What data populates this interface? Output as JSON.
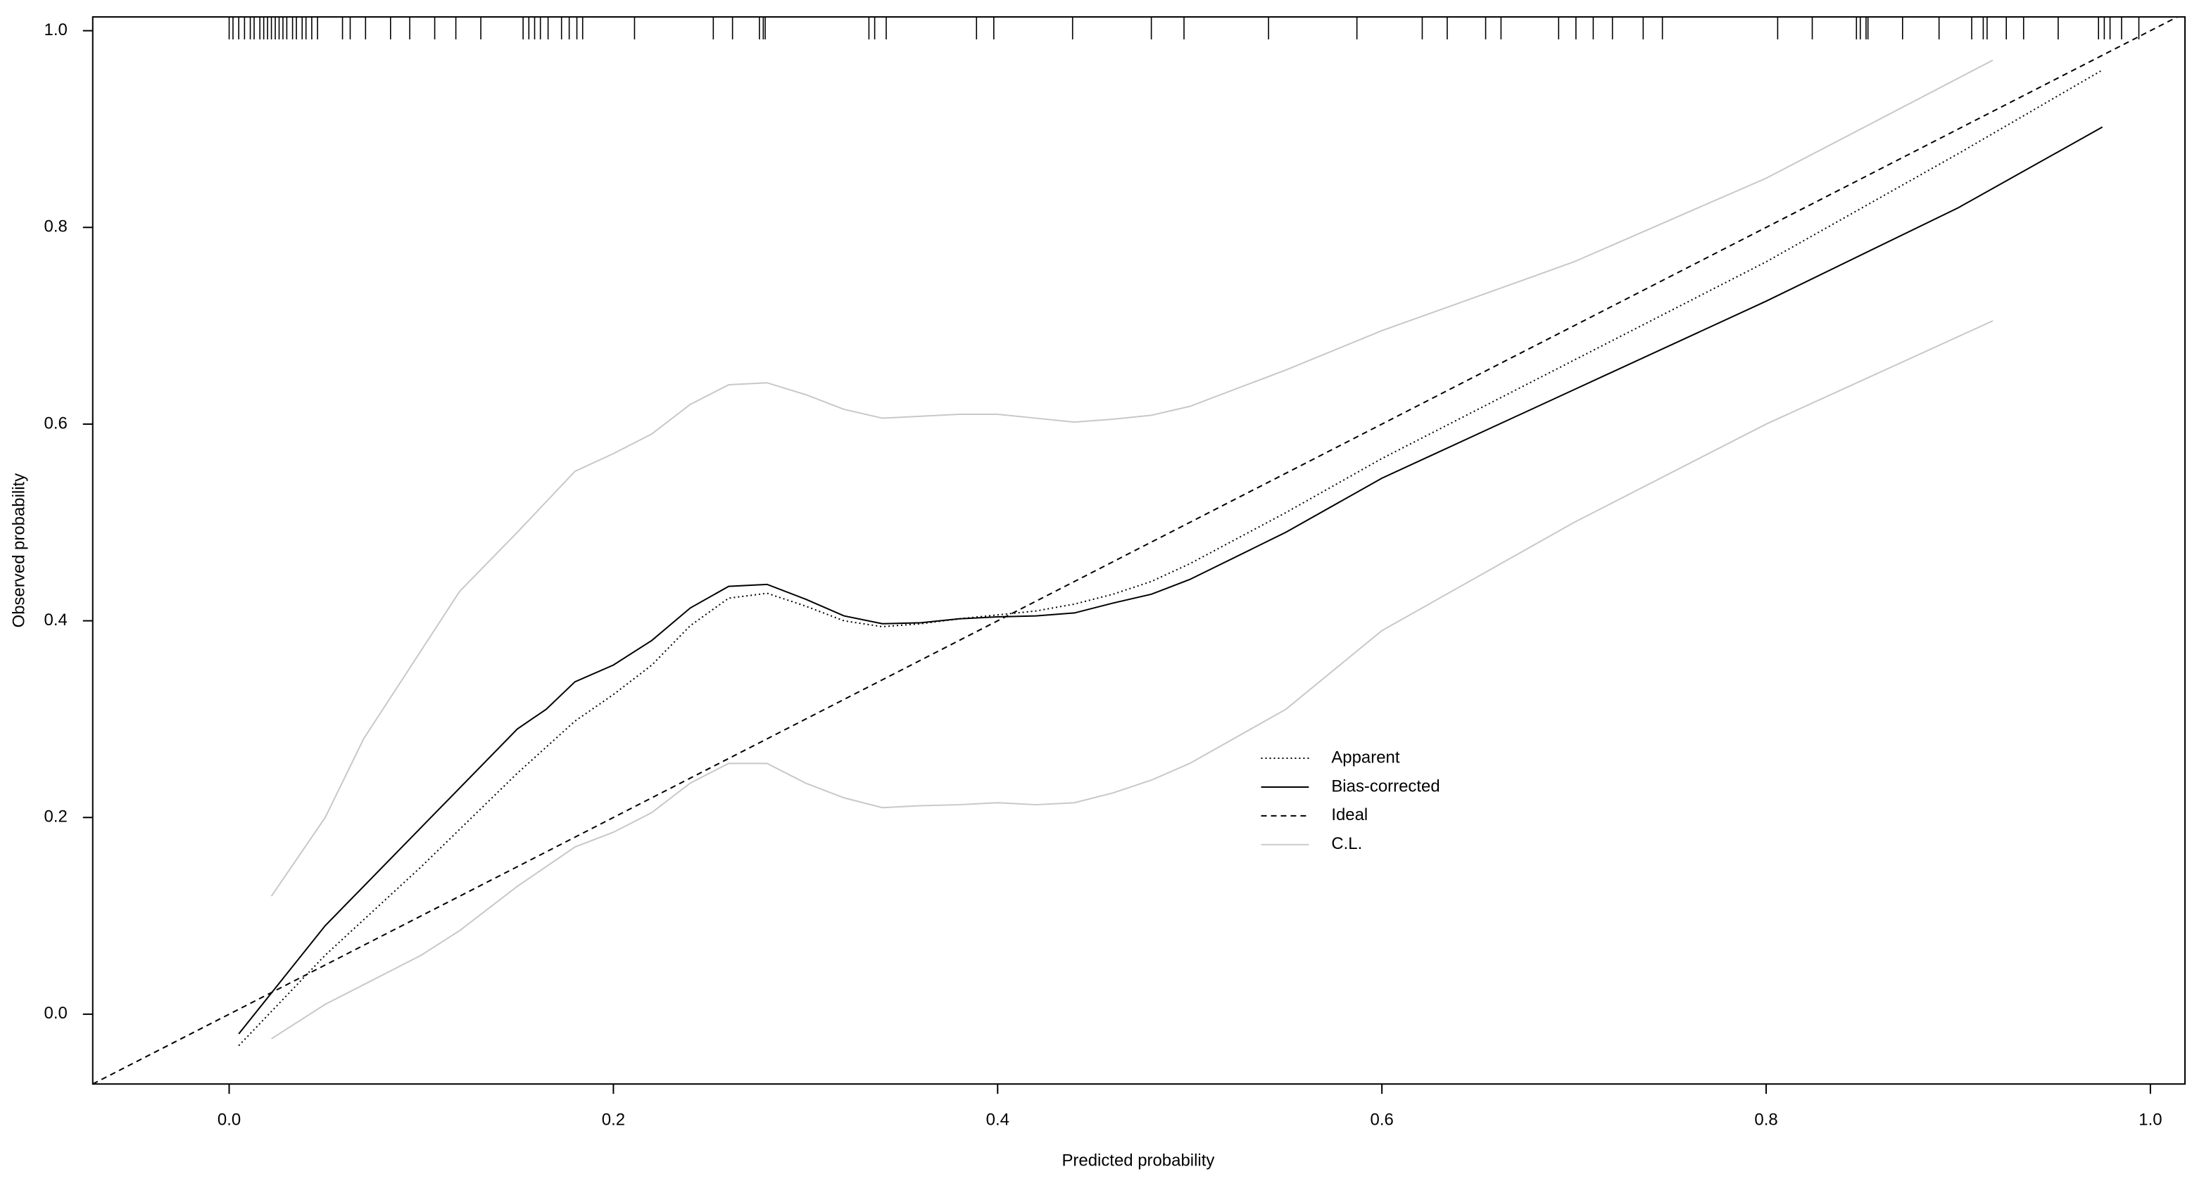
{
  "chart_data": {
    "type": "line",
    "x_label": "Predicted probability",
    "y_label": "Observed probability",
    "xlim": [
      -0.071,
      1.018
    ],
    "ylim": [
      -0.071,
      1.014
    ],
    "xticks": [
      {
        "value": 0,
        "label": "0.0"
      },
      0.2,
      0.4,
      0.6,
      0.8,
      {
        "value": 1,
        "label": "1.0"
      }
    ],
    "yticks": [
      {
        "value": 0,
        "label": "0.0"
      },
      0.2,
      0.4,
      0.6,
      0.8,
      {
        "value": 1,
        "label": "1.0"
      }
    ],
    "grid": false,
    "legend": "center",
    "series": [
      {
        "name": "Apparent",
        "color": "#000000",
        "dash": "dotted",
        "x": [
          0.005,
          0.05,
          0.1,
          0.15,
          0.18,
          0.2,
          0.22,
          0.24,
          0.26,
          0.28,
          0.3,
          0.32,
          0.34,
          0.36,
          0.38,
          0.4,
          0.42,
          0.44,
          0.46,
          0.48,
          0.5,
          0.55,
          0.6,
          0.7,
          0.8,
          0.9,
          0.975
        ],
        "values": [
          -0.032,
          0.06,
          0.15,
          0.245,
          0.298,
          0.325,
          0.355,
          0.395,
          0.423,
          0.428,
          0.415,
          0.4,
          0.394,
          0.397,
          0.402,
          0.406,
          0.41,
          0.417,
          0.427,
          0.44,
          0.458,
          0.51,
          0.565,
          0.665,
          0.765,
          0.875,
          0.96
        ]
      },
      {
        "name": "Bias-corrected",
        "color": "#000000",
        "dash": "solid",
        "x": [
          0.005,
          0.05,
          0.1,
          0.15,
          0.165,
          0.18,
          0.2,
          0.22,
          0.24,
          0.26,
          0.28,
          0.3,
          0.32,
          0.34,
          0.36,
          0.38,
          0.4,
          0.42,
          0.44,
          0.46,
          0.48,
          0.5,
          0.55,
          0.6,
          0.7,
          0.8,
          0.9,
          0.975
        ],
        "values": [
          -0.02,
          0.09,
          0.19,
          0.29,
          0.31,
          0.338,
          0.355,
          0.38,
          0.413,
          0.435,
          0.437,
          0.422,
          0.405,
          0.397,
          0.398,
          0.402,
          0.404,
          0.405,
          0.408,
          0.418,
          0.427,
          0.442,
          0.49,
          0.545,
          0.635,
          0.725,
          0.82,
          0.902
        ]
      },
      {
        "name": "Ideal",
        "color": "#000000",
        "dash": "dashed",
        "x": [
          -0.071,
          1.018
        ],
        "values": [
          -0.071,
          1.018
        ]
      },
      {
        "name": "C.L.",
        "color": "#c8c8c8",
        "dash": "solid",
        "x": [
          0.022,
          0.05,
          0.07,
          0.1,
          0.12,
          0.15,
          0.18,
          0.2,
          0.22,
          0.24,
          0.26,
          0.28,
          0.3,
          0.32,
          0.34,
          0.36,
          0.38,
          0.4,
          0.42,
          0.44,
          0.46,
          0.48,
          0.5,
          0.55,
          0.6,
          0.7,
          0.8,
          0.918
        ],
        "upper": [
          0.12,
          0.2,
          0.28,
          0.37,
          0.43,
          0.49,
          0.552,
          0.57,
          0.59,
          0.62,
          0.64,
          0.642,
          0.63,
          0.615,
          0.606,
          0.608,
          0.61,
          0.61,
          0.606,
          0.602,
          0.605,
          0.609,
          0.618,
          0.655,
          0.695,
          0.765,
          0.85,
          0.97
        ],
        "lower": [
          -0.025,
          0.01,
          0.03,
          0.06,
          0.085,
          0.13,
          0.17,
          0.185,
          0.205,
          0.235,
          0.255,
          0.255,
          0.235,
          0.22,
          0.21,
          0.212,
          0.213,
          0.215,
          0.213,
          0.215,
          0.225,
          0.238,
          0.255,
          0.31,
          0.39,
          0.5,
          0.6,
          0.705
        ]
      }
    ],
    "rug": [
      0.0,
      0.002,
      0.005,
      0.008,
      0.011,
      0.013,
      0.016,
      0.018,
      0.02,
      0.022,
      0.024,
      0.026,
      0.028,
      0.03,
      0.033,
      0.035,
      0.038,
      0.04,
      0.043,
      0.046,
      0.059,
      0.063,
      0.071,
      0.084,
      0.094,
      0.107,
      0.118,
      0.131,
      0.153,
      0.156,
      0.159,
      0.162,
      0.166,
      0.173,
      0.177,
      0.181,
      0.184,
      0.211,
      0.252,
      0.262,
      0.276,
      0.278,
      0.279,
      0.333,
      0.336,
      0.342,
      0.389,
      0.398,
      0.439,
      0.48,
      0.497,
      0.541,
      0.587,
      0.621,
      0.634,
      0.654,
      0.662,
      0.692,
      0.701,
      0.71,
      0.72,
      0.736,
      0.746,
      0.806,
      0.824,
      0.847,
      0.849,
      0.852,
      0.853,
      0.871,
      0.89,
      0.907,
      0.913,
      0.915,
      0.925,
      0.934,
      0.952,
      0.973,
      0.976,
      0.979,
      0.985,
      0.994
    ]
  }
}
